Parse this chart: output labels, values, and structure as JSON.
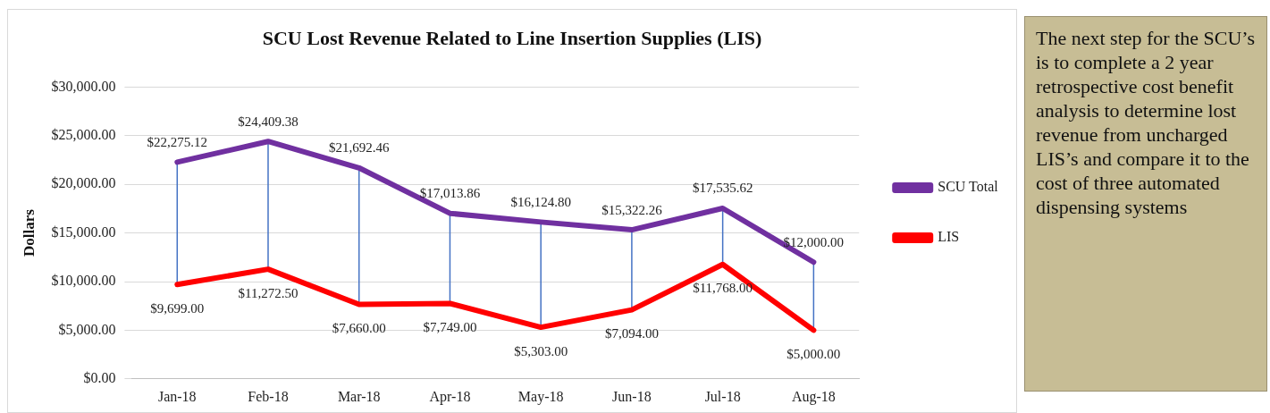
{
  "chart_data": {
    "type": "line",
    "title": "SCU Lost Revenue Related to Line Insertion Supplies (LIS)",
    "ylabel": "Dollars",
    "categories": [
      "Jan-18",
      "Feb-18",
      "Mar-18",
      "Apr-18",
      "May-18",
      "Jun-18",
      "Jul-18",
      "Aug-18"
    ],
    "series": [
      {
        "name": "SCU Total",
        "color": "#7030a0",
        "values": [
          22275.12,
          24409.38,
          21692.46,
          17013.86,
          16124.8,
          15322.26,
          17535.62,
          12000.0
        ],
        "value_labels": [
          "$22,275.12",
          "$24,409.38",
          "$21,692.46",
          "$17,013.86",
          "$16,124.80",
          "$15,322.26",
          "$17,535.62",
          "$12,000.00"
        ]
      },
      {
        "name": "LIS",
        "color": "#ff0000",
        "values": [
          9699.0,
          11272.5,
          7660.0,
          7749.0,
          5303.0,
          7094.0,
          11768.0,
          5000.0
        ],
        "value_labels": [
          "$9,699.00",
          "$11,272.50",
          "$7,660.00",
          "$7,749.00",
          "$5,303.00",
          "$7,094.00",
          "$11,768.00",
          "$5,000.00"
        ]
      }
    ],
    "ylim": [
      0,
      30000
    ],
    "yticks": [
      {
        "value": 0,
        "label": "$0.00"
      },
      {
        "value": 5000,
        "label": "$5,000.00"
      },
      {
        "value": 10000,
        "label": "$10,000.00"
      },
      {
        "value": 15000,
        "label": "$15,000.00"
      },
      {
        "value": 20000,
        "label": "$20,000.00"
      },
      {
        "value": 25000,
        "label": "$25,000.00"
      },
      {
        "value": 30000,
        "label": "$30,000.00"
      }
    ],
    "grid": "y",
    "legend": "right",
    "marker": "none",
    "line_style": "solid",
    "annotations": [
      "The next step for the SCU’s is to complete a 2 year retrospective cost benefit analysis to determine lost revenue from uncharged LIS’s and compare it to the cost of three automated dispensing systems"
    ]
  }
}
